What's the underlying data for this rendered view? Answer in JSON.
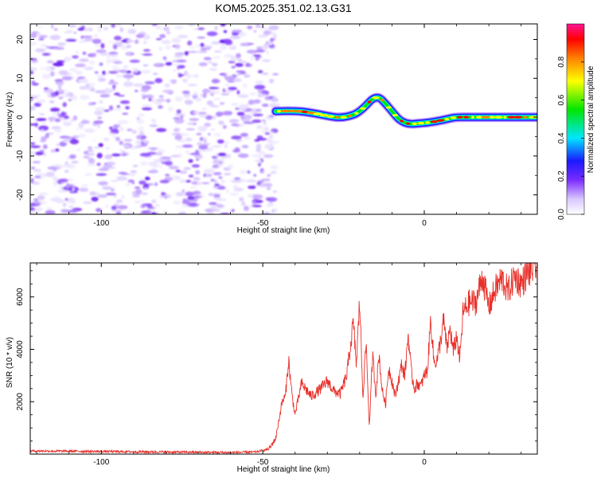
{
  "title": "KOM5.2025.351.02.13.G31",
  "chart_data": [
    {
      "type": "heatmap",
      "title": "KOM5.2025.351.02.13.G31",
      "xlabel": "Height of straight line (km)",
      "ylabel": "Frequency (Hz)",
      "xlim": [
        -122,
        35
      ],
      "ylim": [
        -25,
        24
      ],
      "x_ticks": [
        -100,
        -50,
        0
      ],
      "x_tick_labels": [
        "-100",
        "-50",
        "0"
      ],
      "y_ticks": [
        -20,
        -10,
        0,
        10,
        20
      ],
      "y_tick_labels": [
        "-20",
        "-10",
        "0",
        "10",
        "20"
      ],
      "noise_region_x": [
        -122,
        -47
      ],
      "ridge": {
        "x": [
          -46,
          -42,
          -38,
          -34,
          -30,
          -26,
          -22,
          -20,
          -18,
          -16,
          -14,
          -12,
          -10,
          -8,
          -6,
          -4,
          -2,
          0,
          2,
          4,
          6,
          8,
          10,
          14,
          18,
          22,
          26,
          30,
          35
        ],
        "frequency": [
          1.5,
          1.6,
          1.5,
          1.0,
          0.3,
          -0.2,
          0.5,
          1.5,
          3.0,
          4.8,
          5.2,
          3.5,
          1.5,
          -0.5,
          -1.5,
          -1.8,
          -1.6,
          -1.5,
          -1.3,
          -1.0,
          -0.7,
          -0.3,
          0.0,
          0.0,
          0.0,
          0.0,
          0.0,
          0.0,
          0.0
        ]
      },
      "colorbar": {
        "label": "Normalized spectral amplitude",
        "range": [
          0.0,
          1.0
        ],
        "ticks": [
          0.0,
          0.2,
          0.4,
          0.6,
          0.8
        ],
        "tick_labels": [
          "0.0",
          "0.2",
          "0.4",
          "0.6",
          "0.8"
        ],
        "colormap": [
          "#ffffff",
          "#d9c7ff",
          "#7a2cff",
          "#1a1aff",
          "#00e6ff",
          "#00e600",
          "#ffff00",
          "#ff8000",
          "#ff0000",
          "#ff1493"
        ]
      }
    },
    {
      "type": "line",
      "xlabel": "Height of straight line (km)",
      "ylabel": "SNR (10 * v/v)",
      "xlim": [
        -122,
        35
      ],
      "ylim": [
        0,
        7300
      ],
      "x_ticks": [
        -100,
        -50,
        0
      ],
      "x_tick_labels": [
        "-100",
        "-50",
        "0"
      ],
      "y_ticks": [
        2000,
        4000,
        6000
      ],
      "y_tick_labels": [
        "2000",
        "4000",
        "6000"
      ],
      "series": [
        {
          "name": "SNR",
          "color": "#e8302a",
          "x": [
            -122,
            -110,
            -100,
            -90,
            -80,
            -70,
            -60,
            -52,
            -48,
            -46,
            -45,
            -44,
            -43,
            -42,
            -41,
            -40,
            -38,
            -35,
            -32,
            -30,
            -28,
            -26,
            -24,
            -22,
            -21,
            -20,
            -19,
            -18,
            -17,
            -16,
            -15,
            -14,
            -13,
            -12,
            -11,
            -10,
            -9,
            -8,
            -7,
            -6,
            -5,
            -4,
            -3,
            -2,
            -1,
            0,
            1,
            2,
            3,
            4,
            5,
            6,
            7,
            8,
            9,
            10,
            11,
            12,
            14,
            16,
            18,
            20,
            22,
            24,
            26,
            28,
            30,
            32,
            35
          ],
          "y": [
            120,
            110,
            100,
            90,
            80,
            70,
            60,
            80,
            200,
            600,
            1300,
            2000,
            2200,
            3600,
            2300,
            1500,
            2700,
            2200,
            2500,
            2800,
            2400,
            2300,
            3000,
            5000,
            3400,
            5900,
            2200,
            4300,
            1000,
            3800,
            2300,
            3800,
            2400,
            1900,
            3300,
            2800,
            2200,
            2800,
            3400,
            3000,
            4600,
            3100,
            2500,
            2700,
            2600,
            3000,
            3200,
            5200,
            3500,
            3600,
            4300,
            5100,
            4000,
            4800,
            3900,
            4500,
            3600,
            5400,
            5800,
            5800,
            6800,
            5600,
            6300,
            6700,
            6200,
            6800,
            6500,
            6900,
            7200
          ]
        }
      ]
    }
  ]
}
